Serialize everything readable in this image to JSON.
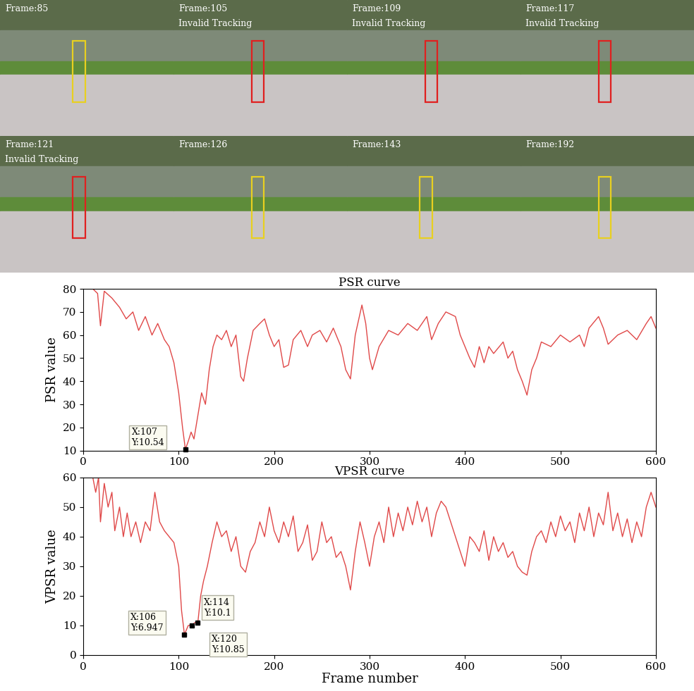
{
  "frames": [
    {
      "label": "Frame:85",
      "status": null,
      "color": "#e8d020"
    },
    {
      "label": "Frame:105",
      "status": "Invalid Tracking",
      "color": "#e02020"
    },
    {
      "label": "Frame:109",
      "status": "Invalid Tracking",
      "color": "#e02020"
    },
    {
      "label": "Frame:117",
      "status": "Invalid Tracking",
      "color": "#e02020"
    },
    {
      "label": "Frame:121",
      "status": "Invalid Tracking",
      "color": "#e02020"
    },
    {
      "label": "Frame:126",
      "status": null,
      "color": "#e8d020"
    },
    {
      "label": "Frame:143",
      "status": null,
      "color": "#e8d020"
    },
    {
      "label": "Frame:192",
      "status": null,
      "color": "#e8d020"
    }
  ],
  "chart_data": [
    {
      "type": "line",
      "title": "PSR curve",
      "y_label": "PSR value",
      "color": "#e04848",
      "grid": false,
      "xlim": [
        0,
        600
      ],
      "xticks": [
        0,
        100,
        200,
        300,
        400,
        500,
        600
      ],
      "ylim": [
        10,
        80
      ],
      "yticks": [
        10,
        20,
        30,
        40,
        50,
        60,
        70,
        80
      ],
      "x": [
        10,
        15,
        18,
        22,
        30,
        38,
        45,
        52,
        58,
        65,
        72,
        78,
        85,
        90,
        95,
        100,
        104,
        107,
        110,
        113,
        116,
        120,
        124,
        128,
        132,
        136,
        140,
        145,
        150,
        155,
        160,
        165,
        168,
        172,
        178,
        185,
        190,
        195,
        200,
        205,
        210,
        215,
        220,
        228,
        235,
        240,
        248,
        255,
        262,
        270,
        275,
        280,
        285,
        292,
        296,
        300,
        303,
        310,
        320,
        330,
        340,
        350,
        360,
        365,
        372,
        380,
        390,
        395,
        400,
        405,
        410,
        415,
        420,
        425,
        430,
        440,
        445,
        450,
        455,
        460,
        465,
        470,
        475,
        480,
        490,
        500,
        510,
        520,
        525,
        530,
        540,
        545,
        550,
        560,
        570,
        580,
        590,
        595,
        600
      ],
      "values": [
        80,
        78,
        64,
        79,
        76,
        72,
        67,
        70,
        62,
        68,
        60,
        65,
        58,
        55,
        48,
        35,
        20,
        10.54,
        14,
        18,
        15,
        25,
        35,
        30,
        45,
        55,
        60,
        58,
        62,
        55,
        60,
        42,
        40,
        50,
        62,
        65,
        67,
        60,
        55,
        58,
        46,
        47,
        58,
        62,
        55,
        60,
        62,
        57,
        63,
        55,
        45,
        41,
        60,
        73,
        65,
        50,
        45,
        55,
        62,
        60,
        65,
        62,
        68,
        58,
        65,
        70,
        68,
        60,
        55,
        50,
        46,
        55,
        48,
        55,
        52,
        57,
        50,
        53,
        45,
        40,
        34,
        45,
        50,
        57,
        55,
        60,
        57,
        60,
        55,
        63,
        68,
        63,
        56,
        60,
        62,
        58,
        65,
        68,
        63
      ],
      "annotations": [
        {
          "x": 107,
          "y": 10.54,
          "text": "X:107\nY:10.54"
        }
      ]
    },
    {
      "type": "line",
      "title": "VPSR curve",
      "x_label": "Frame number",
      "y_label": "VPSR value",
      "color": "#e04848",
      "grid": false,
      "xlim": [
        0,
        600
      ],
      "xticks": [
        0,
        100,
        200,
        300,
        400,
        500,
        600
      ],
      "ylim": [
        0,
        60
      ],
      "yticks": [
        0,
        10,
        20,
        30,
        40,
        50,
        60
      ],
      "x": [
        10,
        13,
        16,
        18,
        22,
        26,
        30,
        33,
        38,
        42,
        46,
        50,
        55,
        60,
        65,
        70,
        75,
        80,
        85,
        90,
        95,
        100,
        103,
        106,
        110,
        114,
        117,
        120,
        123,
        126,
        130,
        135,
        140,
        145,
        150,
        155,
        160,
        165,
        170,
        175,
        180,
        185,
        190,
        195,
        200,
        205,
        210,
        215,
        220,
        225,
        230,
        235,
        240,
        245,
        250,
        255,
        260,
        265,
        270,
        275,
        280,
        285,
        290,
        295,
        300,
        305,
        310,
        315,
        320,
        325,
        330,
        335,
        340,
        345,
        350,
        355,
        360,
        365,
        370,
        375,
        380,
        385,
        390,
        395,
        400,
        405,
        410,
        415,
        420,
        425,
        430,
        435,
        440,
        445,
        450,
        455,
        460,
        465,
        470,
        475,
        480,
        485,
        490,
        495,
        500,
        505,
        510,
        515,
        520,
        525,
        530,
        535,
        540,
        545,
        550,
        555,
        560,
        565,
        570,
        575,
        580,
        585,
        590,
        595,
        600
      ],
      "values": [
        60,
        55,
        60,
        45,
        58,
        50,
        55,
        42,
        50,
        40,
        48,
        40,
        45,
        38,
        45,
        42,
        55,
        45,
        42,
        40,
        38,
        30,
        15,
        6.947,
        10,
        10.1,
        11,
        10.85,
        20,
        25,
        30,
        38,
        45,
        40,
        42,
        35,
        40,
        30,
        28,
        35,
        38,
        45,
        40,
        50,
        42,
        38,
        45,
        40,
        47,
        35,
        38,
        44,
        32,
        35,
        45,
        38,
        40,
        33,
        35,
        30,
        22,
        35,
        45,
        38,
        30,
        40,
        45,
        38,
        50,
        40,
        48,
        42,
        50,
        44,
        52,
        45,
        50,
        40,
        48,
        52,
        50,
        45,
        40,
        35,
        30,
        40,
        38,
        35,
        42,
        32,
        40,
        35,
        38,
        33,
        35,
        30,
        28,
        27,
        35,
        40,
        42,
        38,
        45,
        40,
        47,
        42,
        45,
        38,
        48,
        42,
        50,
        40,
        48,
        44,
        55,
        42,
        48,
        40,
        46,
        38,
        45,
        40,
        50,
        55,
        50
      ],
      "annotations": [
        {
          "x": 106,
          "y": 6.947,
          "text": "X:106\nY:6.947"
        },
        {
          "x": 114,
          "y": 10.1,
          "text": "X:114\nY:10.1"
        },
        {
          "x": 120,
          "y": 10.85,
          "text": "X:120\nY:10.85"
        }
      ]
    }
  ]
}
